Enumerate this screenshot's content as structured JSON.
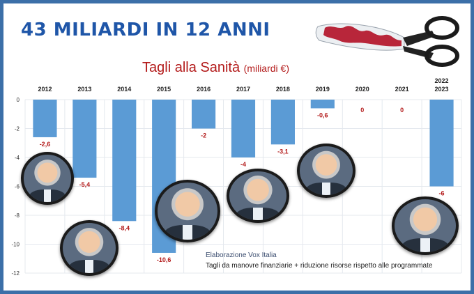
{
  "header": {
    "headline": "43 MILIARDI IN 12 ANNI",
    "subtitle": "Tagli alla Sanità",
    "unit": "(miliardi €)"
  },
  "credits": {
    "line1": "Elaborazione Vox Italia",
    "line2": "Tagli da manovre finanziarie + riduzione risorse rispetto alle programmate"
  },
  "colors": {
    "bar": "#5b9bd5",
    "value_label": "#b31a1a",
    "headline": "#1f56a8",
    "frame": "#3c6fa8"
  },
  "icons": [
    "scissors-icon"
  ],
  "chart_data": {
    "type": "bar",
    "title": "Tagli alla Sanità",
    "ylabel": "(miliardi €)",
    "categories": [
      "2012",
      "2013",
      "2014",
      "2015",
      "2016",
      "2017",
      "2018",
      "2019",
      "2020",
      "2021",
      "2023"
    ],
    "category_notes": [
      "",
      "",
      "",
      "",
      "",
      "",
      "",
      "",
      "",
      "",
      "2022"
    ],
    "values": [
      -2.6,
      -5.4,
      -8.4,
      -10.6,
      -2,
      -4,
      -3.1,
      -0.6,
      0,
      0,
      -6
    ],
    "value_labels": [
      "-2,6",
      "-5,4",
      "-8,4",
      "-10,6",
      "-2",
      "-4",
      "-3,1",
      "-0,6",
      "0",
      "0",
      "-6"
    ],
    "yticks": [
      0,
      -2,
      -4,
      -6,
      -8,
      -10,
      -12
    ],
    "ylim": [
      -12,
      0
    ],
    "grid": true,
    "legend": "none"
  }
}
